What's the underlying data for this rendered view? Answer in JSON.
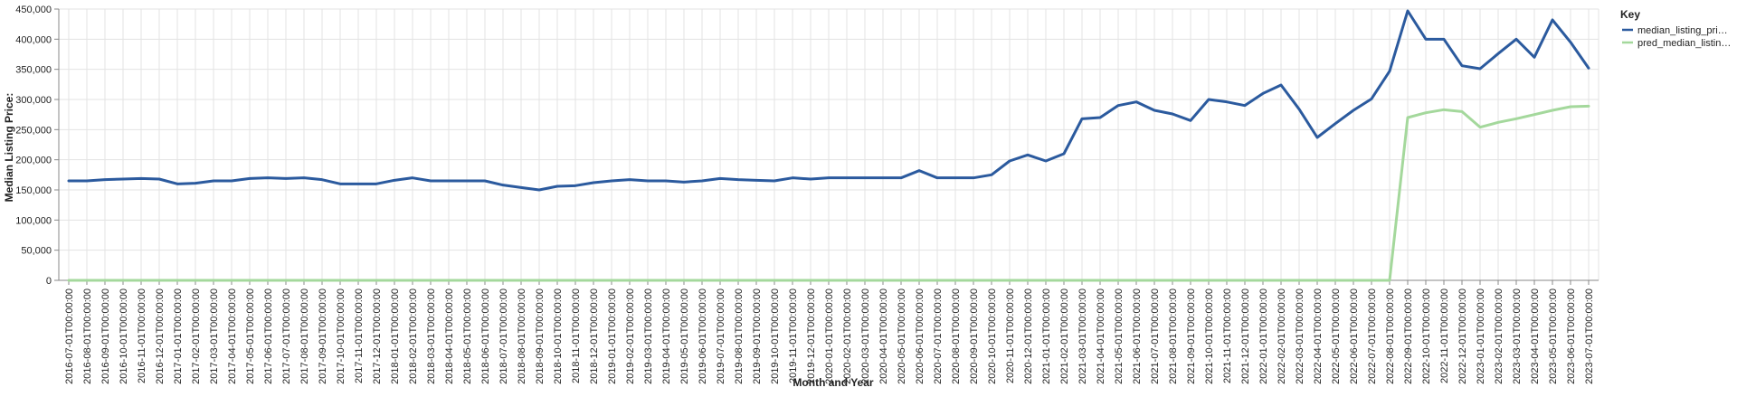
{
  "chart_data": {
    "type": "line",
    "xlabel": "Month and Year",
    "ylabel": "Median Listing Price:",
    "ylim": [
      0,
      450000
    ],
    "y_ticks": [
      0,
      50000,
      100000,
      150000,
      200000,
      250000,
      300000,
      350000,
      400000,
      450000
    ],
    "y_tick_labels": [
      "0",
      "50,000",
      "100,000",
      "150,000",
      "200,000",
      "250,000",
      "300,000",
      "350,000",
      "400,000",
      "450,000"
    ],
    "grid": true,
    "legend": {
      "title": "Key",
      "placement": "top-right"
    },
    "colors": {
      "median_listing_price": "#2b5a9e",
      "pred_median_listing_price": "#a4d89c",
      "grid": "#e3e3e3",
      "axis": "#888888"
    },
    "x": [
      "2016-07-01T00:00:00",
      "2016-08-01T00:00:00",
      "2016-09-01T00:00:00",
      "2016-10-01T00:00:00",
      "2016-11-01T00:00:00",
      "2016-12-01T00:00:00",
      "2017-01-01T00:00:00",
      "2017-02-01T00:00:00",
      "2017-03-01T00:00:00",
      "2017-04-01T00:00:00",
      "2017-05-01T00:00:00",
      "2017-06-01T00:00:00",
      "2017-07-01T00:00:00",
      "2017-08-01T00:00:00",
      "2017-09-01T00:00:00",
      "2017-10-01T00:00:00",
      "2017-11-01T00:00:00",
      "2017-12-01T00:00:00",
      "2018-01-01T00:00:00",
      "2018-02-01T00:00:00",
      "2018-03-01T00:00:00",
      "2018-04-01T00:00:00",
      "2018-05-01T00:00:00",
      "2018-06-01T00:00:00",
      "2018-07-01T00:00:00",
      "2018-08-01T00:00:00",
      "2018-09-01T00:00:00",
      "2018-10-01T00:00:00",
      "2018-11-01T00:00:00",
      "2018-12-01T00:00:00",
      "2019-01-01T00:00:00",
      "2019-02-01T00:00:00",
      "2019-03-01T00:00:00",
      "2019-04-01T00:00:00",
      "2019-05-01T00:00:00",
      "2019-06-01T00:00:00",
      "2019-07-01T00:00:00",
      "2019-08-01T00:00:00",
      "2019-09-01T00:00:00",
      "2019-10-01T00:00:00",
      "2019-11-01T00:00:00",
      "2019-12-01T00:00:00",
      "2020-01-01T00:00:00",
      "2020-02-01T00:00:00",
      "2020-03-01T00:00:00",
      "2020-04-01T00:00:00",
      "2020-05-01T00:00:00",
      "2020-06-01T00:00:00",
      "2020-07-01T00:00:00",
      "2020-08-01T00:00:00",
      "2020-09-01T00:00:00",
      "2020-10-01T00:00:00",
      "2020-11-01T00:00:00",
      "2020-12-01T00:00:00",
      "2021-01-01T00:00:00",
      "2021-02-01T00:00:00",
      "2021-03-01T00:00:00",
      "2021-04-01T00:00:00",
      "2021-05-01T00:00:00",
      "2021-06-01T00:00:00",
      "2021-07-01T00:00:00",
      "2021-08-01T00:00:00",
      "2021-09-01T00:00:00",
      "2021-10-01T00:00:00",
      "2021-11-01T00:00:00",
      "2021-12-01T00:00:00",
      "2022-01-01T00:00:00",
      "2022-02-01T00:00:00",
      "2022-03-01T00:00:00",
      "2022-04-01T00:00:00",
      "2022-05-01T00:00:00",
      "2022-06-01T00:00:00",
      "2022-07-01T00:00:00",
      "2022-08-01T00:00:00",
      "2022-09-01T00:00:00",
      "2022-10-01T00:00:00",
      "2022-11-01T00:00:00",
      "2022-12-01T00:00:00",
      "2023-01-01T00:00:00",
      "2023-02-01T00:00:00",
      "2023-03-01T00:00:00",
      "2023-04-01T00:00:00",
      "2023-05-01T00:00:00",
      "2023-06-01T00:00:00",
      "2023-07-01T00:00:00"
    ],
    "series": [
      {
        "name": "median_listing_price",
        "legend_label": "median_listing_pri…",
        "color": "#2b5a9e",
        "values": [
          165000,
          165000,
          167000,
          168000,
          169000,
          168000,
          160000,
          161000,
          165000,
          165000,
          169000,
          170000,
          169000,
          170000,
          167000,
          160000,
          160000,
          160000,
          166000,
          170000,
          165000,
          165000,
          165000,
          165000,
          158000,
          154000,
          150000,
          156000,
          157000,
          162000,
          165000,
          167000,
          165000,
          165000,
          163000,
          165000,
          169000,
          167000,
          166000,
          165000,
          170000,
          168000,
          170000,
          170000,
          170000,
          170000,
          170000,
          182000,
          170000,
          170000,
          170000,
          175000,
          198000,
          208000,
          198000,
          210000,
          268000,
          270000,
          290000,
          296000,
          282000,
          276000,
          265000,
          300000,
          296000,
          290000,
          310000,
          324000,
          284000,
          237000,
          260000,
          282000,
          301000,
          347000,
          447000,
          400000,
          400000,
          356000,
          351000,
          376000,
          400000,
          370000,
          432000,
          395000,
          352000
        ]
      },
      {
        "name": "pred_median_listing_price",
        "legend_label": "pred_median_listin…",
        "color": "#a4d89c",
        "values": [
          0,
          0,
          0,
          0,
          0,
          0,
          0,
          0,
          0,
          0,
          0,
          0,
          0,
          0,
          0,
          0,
          0,
          0,
          0,
          0,
          0,
          0,
          0,
          0,
          0,
          0,
          0,
          0,
          0,
          0,
          0,
          0,
          0,
          0,
          0,
          0,
          0,
          0,
          0,
          0,
          0,
          0,
          0,
          0,
          0,
          0,
          0,
          0,
          0,
          0,
          0,
          0,
          0,
          0,
          0,
          0,
          0,
          0,
          0,
          0,
          0,
          0,
          0,
          0,
          0,
          0,
          0,
          0,
          0,
          0,
          0,
          0,
          0,
          0,
          270000,
          278000,
          283000,
          280000,
          254000,
          262000,
          268000,
          275000,
          282000,
          288000,
          289000
        ]
      }
    ]
  }
}
